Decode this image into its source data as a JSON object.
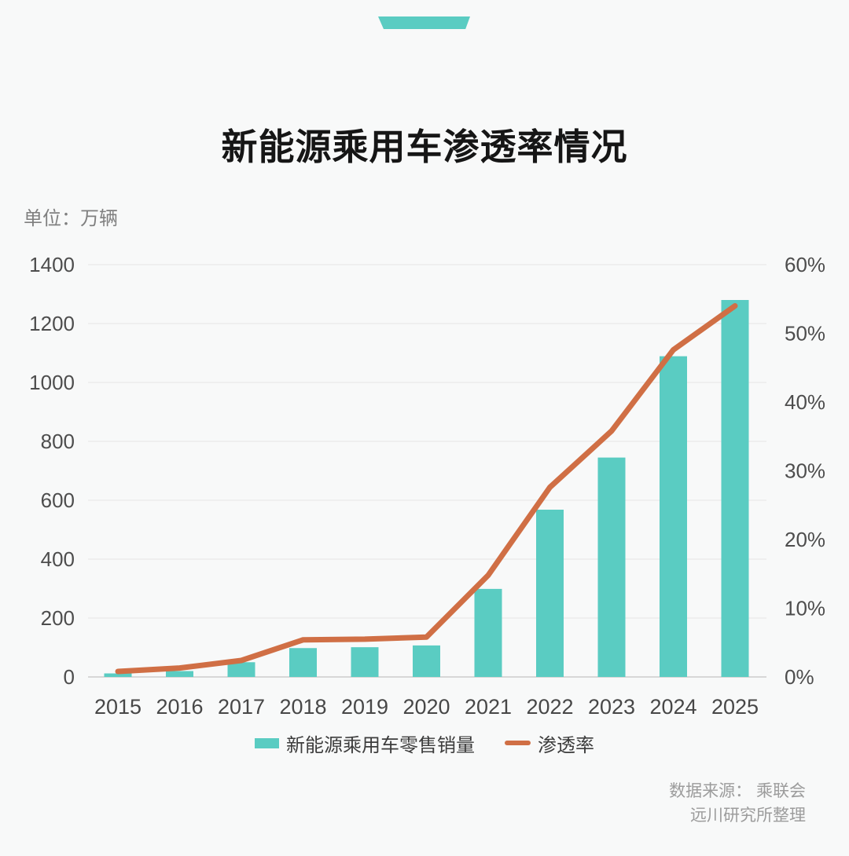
{
  "page": {
    "background": "#f8f9f9",
    "accent_teal": "#5accc2",
    "accent_orange": "#d06f45"
  },
  "header": {
    "title": "新能源乘用车渗透率情况"
  },
  "unit_label": "单位：万辆",
  "chart_data": {
    "type": "bar+line combo",
    "categories": [
      "2015",
      "2016",
      "2017",
      "2018",
      "2019",
      "2020",
      "2021",
      "2022",
      "2023",
      "2024",
      "2025"
    ],
    "series": [
      {
        "name": "新能源乘用车零售销量",
        "type": "bar",
        "axis": "left",
        "unit": "万辆",
        "color": "#5accc2",
        "values": [
          12,
          20,
          50,
          98,
          101,
          107,
          299,
          568,
          745,
          1089,
          1280
        ]
      },
      {
        "name": "渗透率",
        "type": "line",
        "axis": "right",
        "unit": "%",
        "color": "#d06f45",
        "values": [
          0.8,
          1.3,
          2.4,
          5.4,
          5.5,
          5.8,
          14.8,
          27.6,
          35.8,
          47.6,
          54.0
        ]
      }
    ],
    "left_axis": {
      "min": 0,
      "max": 1400,
      "step": 200,
      "tick_labels": [
        "0",
        "200",
        "400",
        "600",
        "800",
        "1000",
        "1200",
        "1400"
      ]
    },
    "right_axis": {
      "min": 0,
      "max": 60,
      "step": 10,
      "tick_labels": [
        "0%",
        "10%",
        "20%",
        "30%",
        "40%",
        "50%",
        "60%"
      ]
    },
    "grid": true,
    "legend_position": "bottom"
  },
  "source": {
    "line1": "数据来源：  乘联会",
    "line2": "远川研究所整理"
  }
}
